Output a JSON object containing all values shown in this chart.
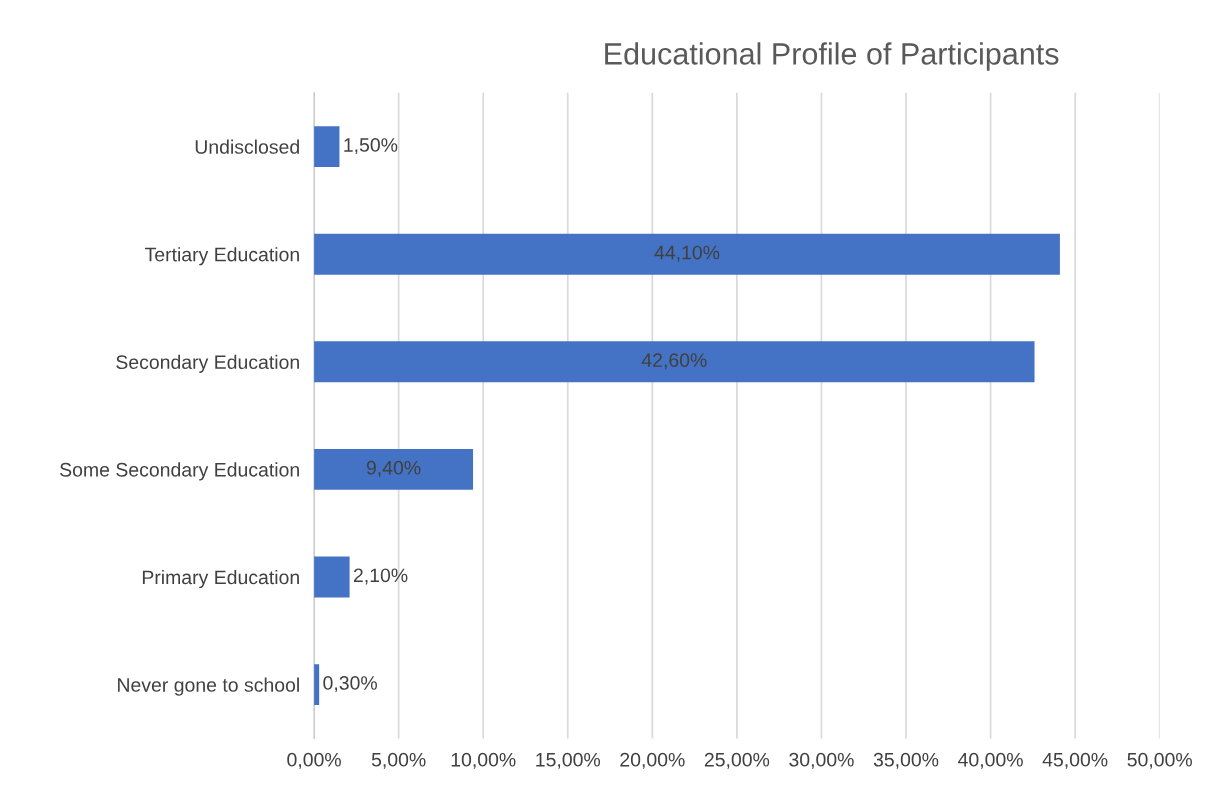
{
  "chart_data": {
    "type": "bar",
    "orientation": "horizontal",
    "title": "Educational Profile of Participants",
    "categories": [
      "Undisclosed",
      "Tertiary Education",
      "Secondary Education",
      "Some Secondary Education",
      "Primary Education",
      "Never gone to school"
    ],
    "values": [
      1.5,
      44.1,
      42.6,
      9.4,
      2.1,
      0.3
    ],
    "value_labels": [
      "1,50%",
      "44,10%",
      "42,60%",
      "9,40%",
      "2,10%",
      "0,30%"
    ],
    "color": "#4472c4",
    "xlim": [
      0,
      50
    ],
    "xticks": [
      {
        "value": 0,
        "label": "0,00%"
      },
      {
        "value": 5,
        "label": "5,00%"
      },
      {
        "value": 10,
        "label": "10,00%"
      },
      {
        "value": 15,
        "label": "15,00%"
      },
      {
        "value": 20,
        "label": "20,00%"
      },
      {
        "value": 25,
        "label": "25,00%"
      },
      {
        "value": 30,
        "label": "30,00%"
      },
      {
        "value": 35,
        "label": "35,00%"
      },
      {
        "value": 40,
        "label": "40,00%"
      },
      {
        "value": 45,
        "label": "45,00%"
      },
      {
        "value": 50,
        "label": "50,00%"
      }
    ],
    "grid": "x",
    "legend": false
  }
}
